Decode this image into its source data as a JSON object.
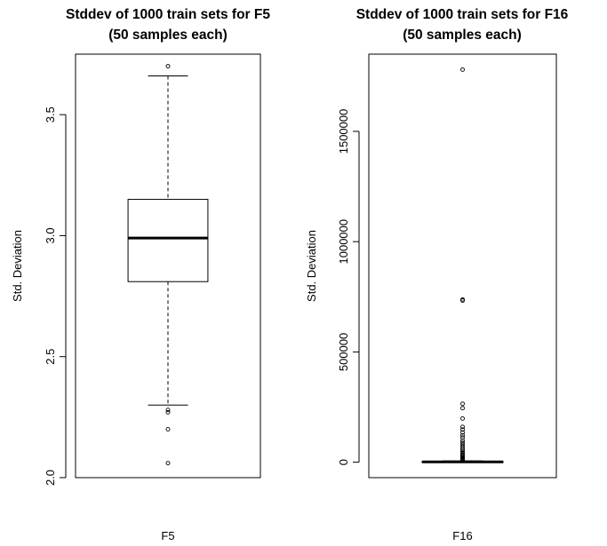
{
  "chart_data": [
    {
      "type": "box",
      "title": [
        "Stddev of 1000 train sets for F5",
        "(50 samples each)"
      ],
      "xlabel": "F5",
      "ylabel": "Std. Deviation",
      "ylim": [
        2.0,
        3.75
      ],
      "yticks": [
        2.0,
        2.5,
        3.0,
        3.5
      ],
      "ytick_labels": [
        "2.0",
        "2.5",
        "3.0",
        "3.5"
      ],
      "box": {
        "whisker_low": 2.3,
        "q1": 2.81,
        "median": 2.99,
        "q3": 3.15,
        "whisker_high": 3.66
      },
      "outliers": [
        3.7,
        2.28,
        2.27,
        2.2,
        2.06
      ]
    },
    {
      "type": "box",
      "title": [
        "Stddev of 1000 train sets for F16",
        "(50 samples each)"
      ],
      "xlabel": "F16",
      "ylabel": "Std. Deviation",
      "ylim": [
        -70000,
        1850000
      ],
      "yticks": [
        0,
        500000,
        1000000,
        1500000
      ],
      "ytick_labels": [
        "0",
        "500000",
        "1000000",
        "1500000"
      ],
      "box": {
        "whisker_low": 0,
        "q1": 500,
        "median": 1500,
        "q3": 3000,
        "whisker_high": 6000
      },
      "outliers": [
        1780000,
        738000,
        733000,
        265000,
        245000,
        198000,
        160000,
        148000,
        135000,
        122000,
        112000,
        98000,
        88000,
        79000,
        70000,
        62000,
        55000,
        48000,
        42000,
        36000,
        31000,
        26000,
        21000,
        17000,
        13000,
        10000,
        8000
      ]
    }
  ]
}
